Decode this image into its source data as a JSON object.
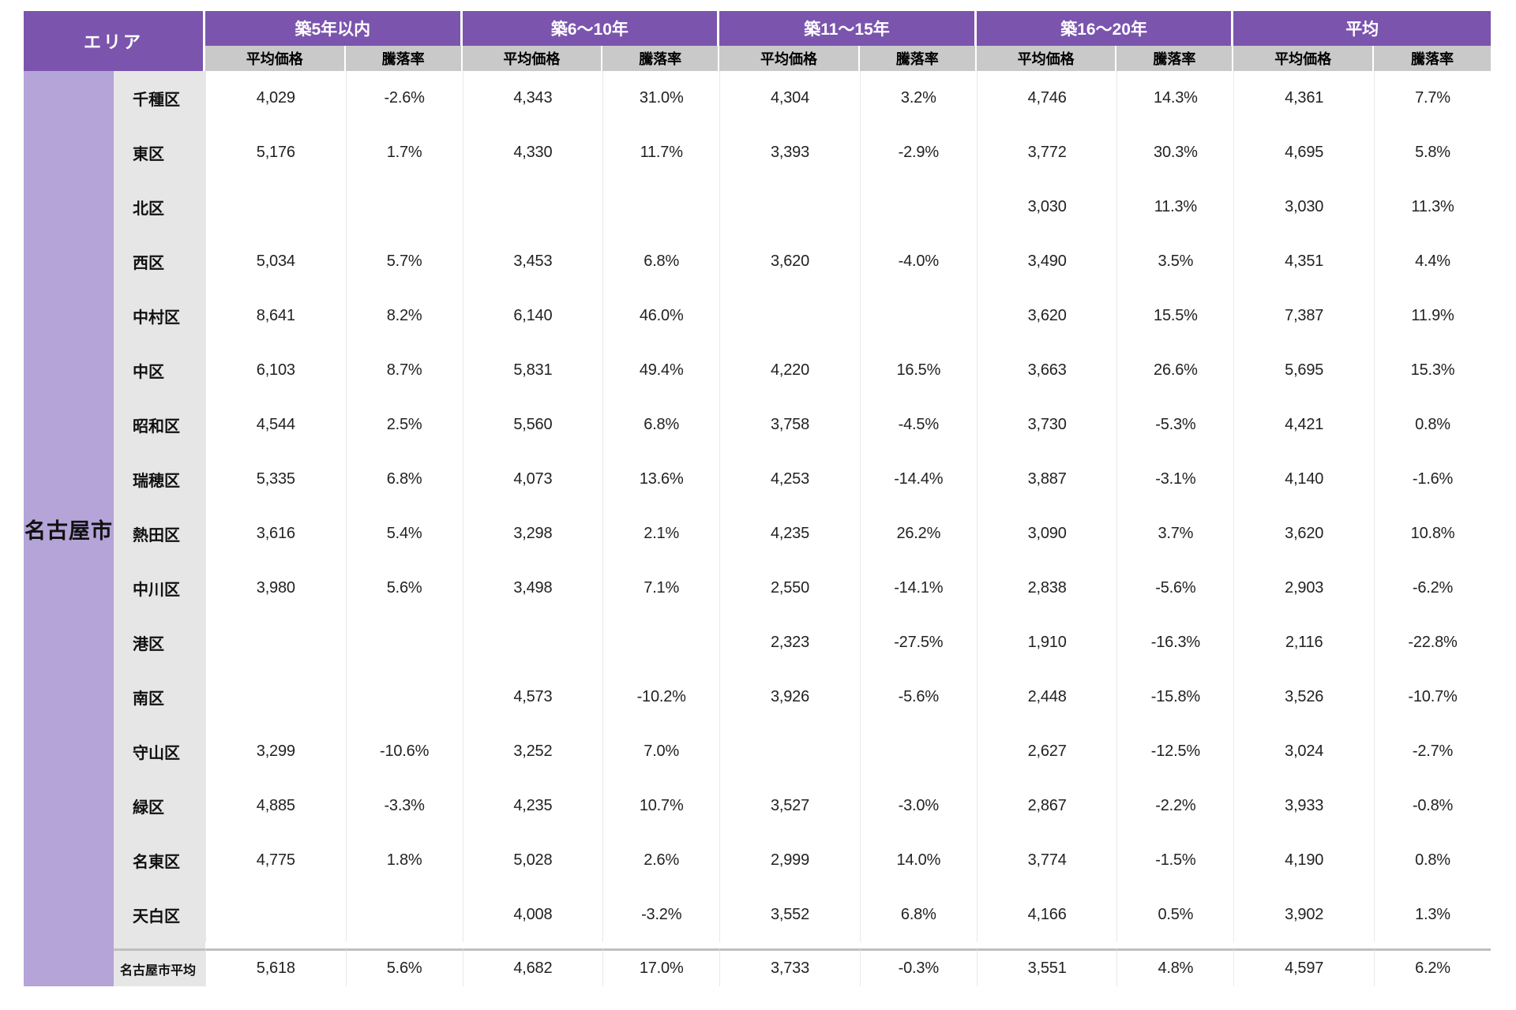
{
  "colors": {
    "header_purple": "#7B54AE",
    "band_purple": "#B4A4D8",
    "subheader_gray": "#C9C9C9",
    "label_gray": "#E7E6E6",
    "footer_line_gray": "#BFBFBF"
  },
  "table": {
    "area_header": "エリア",
    "group_label": "名古屋市",
    "categories": [
      "築5年以内",
      "築6〜10年",
      "築11〜15年",
      "築16〜20年",
      "平均"
    ],
    "subheaders": [
      "平均価格",
      "騰落率"
    ],
    "rows": [
      {
        "ward": "千種区",
        "values": [
          "4,029",
          "-2.6%",
          "4,343",
          "31.0%",
          "4,304",
          "3.2%",
          "4,746",
          "14.3%",
          "4,361",
          "7.7%"
        ]
      },
      {
        "ward": "東区",
        "values": [
          "5,176",
          "1.7%",
          "4,330",
          "11.7%",
          "3,393",
          "-2.9%",
          "3,772",
          "30.3%",
          "4,695",
          "5.8%"
        ]
      },
      {
        "ward": "北区",
        "values": [
          "",
          "",
          "",
          "",
          "",
          "",
          "3,030",
          "11.3%",
          "3,030",
          "11.3%"
        ]
      },
      {
        "ward": "西区",
        "values": [
          "5,034",
          "5.7%",
          "3,453",
          "6.8%",
          "3,620",
          "-4.0%",
          "3,490",
          "3.5%",
          "4,351",
          "4.4%"
        ]
      },
      {
        "ward": "中村区",
        "values": [
          "8,641",
          "8.2%",
          "6,140",
          "46.0%",
          "",
          "",
          "3,620",
          "15.5%",
          "7,387",
          "11.9%"
        ]
      },
      {
        "ward": "中区",
        "values": [
          "6,103",
          "8.7%",
          "5,831",
          "49.4%",
          "4,220",
          "16.5%",
          "3,663",
          "26.6%",
          "5,695",
          "15.3%"
        ]
      },
      {
        "ward": "昭和区",
        "values": [
          "4,544",
          "2.5%",
          "5,560",
          "6.8%",
          "3,758",
          "-4.5%",
          "3,730",
          "-5.3%",
          "4,421",
          "0.8%"
        ]
      },
      {
        "ward": "瑞穂区",
        "values": [
          "5,335",
          "6.8%",
          "4,073",
          "13.6%",
          "4,253",
          "-14.4%",
          "3,887",
          "-3.1%",
          "4,140",
          "-1.6%"
        ]
      },
      {
        "ward": "熱田区",
        "values": [
          "3,616",
          "5.4%",
          "3,298",
          "2.1%",
          "4,235",
          "26.2%",
          "3,090",
          "3.7%",
          "3,620",
          "10.8%"
        ]
      },
      {
        "ward": "中川区",
        "values": [
          "3,980",
          "5.6%",
          "3,498",
          "7.1%",
          "2,550",
          "-14.1%",
          "2,838",
          "-5.6%",
          "2,903",
          "-6.2%"
        ]
      },
      {
        "ward": "港区",
        "values": [
          "",
          "",
          "",
          "",
          "2,323",
          "-27.5%",
          "1,910",
          "-16.3%",
          "2,116",
          "-22.8%"
        ]
      },
      {
        "ward": "南区",
        "values": [
          "",
          "",
          "4,573",
          "-10.2%",
          "3,926",
          "-5.6%",
          "2,448",
          "-15.8%",
          "3,526",
          "-10.7%"
        ]
      },
      {
        "ward": "守山区",
        "values": [
          "3,299",
          "-10.6%",
          "3,252",
          "7.0%",
          "",
          "",
          "2,627",
          "-12.5%",
          "3,024",
          "-2.7%"
        ]
      },
      {
        "ward": "緑区",
        "values": [
          "4,885",
          "-3.3%",
          "4,235",
          "10.7%",
          "3,527",
          "-3.0%",
          "2,867",
          "-2.2%",
          "3,933",
          "-0.8%"
        ]
      },
      {
        "ward": "名東区",
        "values": [
          "4,775",
          "1.8%",
          "5,028",
          "2.6%",
          "2,999",
          "14.0%",
          "3,774",
          "-1.5%",
          "4,190",
          "0.8%"
        ]
      },
      {
        "ward": "天白区",
        "values": [
          "",
          "",
          "4,008",
          "-3.2%",
          "3,552",
          "6.8%",
          "4,166",
          "0.5%",
          "3,902",
          "1.3%"
        ]
      }
    ],
    "footer": {
      "label": "名古屋市平均",
      "values": [
        "5,618",
        "5.6%",
        "4,682",
        "17.0%",
        "3,733",
        "-0.3%",
        "3,551",
        "4.8%",
        "4,597",
        "6.2%"
      ]
    }
  },
  "chart_data": {
    "type": "table",
    "area_group": "名古屋市",
    "categories": [
      "築5年以内",
      "築6〜10年",
      "築11〜15年",
      "築16〜20年",
      "平均"
    ],
    "metrics_per_category": [
      "平均価格",
      "騰落率(%)"
    ],
    "value_order": "[価格5年以内, 騰落率5年以内, 価格6〜10年, 騰落率6〜10年, 価格11〜15年, 騰落率11〜15年, 価格16〜20年, 騰落率16〜20年, 価格平均, 騰落率平均]",
    "rows": [
      {
        "ward": "千種区",
        "values": [
          4029,
          -2.6,
          4343,
          31.0,
          4304,
          3.2,
          4746,
          14.3,
          4361,
          7.7
        ]
      },
      {
        "ward": "東区",
        "values": [
          5176,
          1.7,
          4330,
          11.7,
          3393,
          -2.9,
          3772,
          30.3,
          4695,
          5.8
        ]
      },
      {
        "ward": "北区",
        "values": [
          null,
          null,
          null,
          null,
          null,
          null,
          3030,
          11.3,
          3030,
          11.3
        ]
      },
      {
        "ward": "西区",
        "values": [
          5034,
          5.7,
          3453,
          6.8,
          3620,
          -4.0,
          3490,
          3.5,
          4351,
          4.4
        ]
      },
      {
        "ward": "中村区",
        "values": [
          8641,
          8.2,
          6140,
          46.0,
          null,
          null,
          3620,
          15.5,
          7387,
          11.9
        ]
      },
      {
        "ward": "中区",
        "values": [
          6103,
          8.7,
          5831,
          49.4,
          4220,
          16.5,
          3663,
          26.6,
          5695,
          15.3
        ]
      },
      {
        "ward": "昭和区",
        "values": [
          4544,
          2.5,
          5560,
          6.8,
          3758,
          -4.5,
          3730,
          -5.3,
          4421,
          0.8
        ]
      },
      {
        "ward": "瑞穂区",
        "values": [
          5335,
          6.8,
          4073,
          13.6,
          4253,
          -14.4,
          3887,
          -3.1,
          4140,
          -1.6
        ]
      },
      {
        "ward": "熱田区",
        "values": [
          3616,
          5.4,
          3298,
          2.1,
          4235,
          26.2,
          3090,
          3.7,
          3620,
          10.8
        ]
      },
      {
        "ward": "中川区",
        "values": [
          3980,
          5.6,
          3498,
          7.1,
          2550,
          -14.1,
          2838,
          -5.6,
          2903,
          -6.2
        ]
      },
      {
        "ward": "港区",
        "values": [
          null,
          null,
          null,
          null,
          2323,
          -27.5,
          1910,
          -16.3,
          2116,
          -22.8
        ]
      },
      {
        "ward": "南区",
        "values": [
          null,
          null,
          4573,
          -10.2,
          3926,
          -5.6,
          2448,
          -15.8,
          3526,
          -10.7
        ]
      },
      {
        "ward": "守山区",
        "values": [
          3299,
          -10.6,
          3252,
          7.0,
          null,
          null,
          2627,
          -12.5,
          3024,
          -2.7
        ]
      },
      {
        "ward": "緑区",
        "values": [
          4885,
          -3.3,
          4235,
          10.7,
          3527,
          -3.0,
          2867,
          -2.2,
          3933,
          -0.8
        ]
      },
      {
        "ward": "名東区",
        "values": [
          4775,
          1.8,
          5028,
          2.6,
          2999,
          14.0,
          3774,
          -1.5,
          4190,
          0.8
        ]
      },
      {
        "ward": "天白区",
        "values": [
          null,
          null,
          4008,
          -3.2,
          3552,
          6.8,
          4166,
          0.5,
          3902,
          1.3
        ]
      }
    ],
    "footer": {
      "ward": "名古屋市平均",
      "values": [
        5618,
        5.6,
        4682,
        17.0,
        3733,
        -0.3,
        3551,
        4.8,
        4597,
        6.2
      ]
    }
  }
}
